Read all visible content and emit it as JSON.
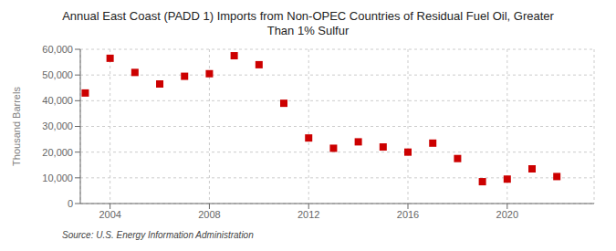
{
  "chart_data": {
    "type": "scatter",
    "title": "Annual East Coast (PADD 1) Imports from Non-OPEC Countries of Residual Fuel Oil, Greater\nThan 1% Sulfur",
    "ylabel": "Thousand Barrels",
    "annotation": "Source: U.S. Energy Information Administration",
    "x": [
      2003,
      2004,
      2005,
      2006,
      2007,
      2008,
      2009,
      2010,
      2011,
      2012,
      2013,
      2014,
      2015,
      2016,
      2017,
      2018,
      2019,
      2020,
      2021,
      2022
    ],
    "values": [
      43000,
      56500,
      51000,
      46500,
      49500,
      50500,
      57500,
      54000,
      39000,
      25500,
      21500,
      24000,
      22000,
      20000,
      23500,
      17500,
      8500,
      9500,
      13500,
      10500
    ],
    "color": "#cc0000",
    "marker": "square",
    "xlim": [
      2002.8,
      2023.5
    ],
    "xticks": [
      2004,
      2008,
      2012,
      2016,
      2020
    ],
    "ylim": [
      0,
      60000
    ],
    "yticks": [
      0,
      {
        "value": 10000,
        "label": "10,000"
      },
      {
        "value": 20000,
        "label": "20,000"
      },
      {
        "value": 30000,
        "label": "30,000"
      },
      {
        "value": 40000,
        "label": "40,000"
      },
      {
        "value": 50000,
        "label": "50,000"
      },
      {
        "value": 60000,
        "label": "60,000"
      }
    ],
    "grid": true
  }
}
